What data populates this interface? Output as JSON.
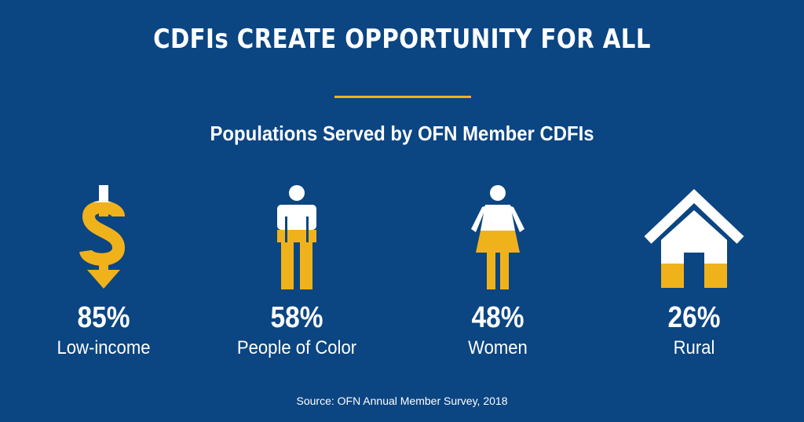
{
  "title": "CDFIs CREATE OPPORTUNITY FOR ALL",
  "subtitle": "Populations Served by OFN Member CDFIs",
  "colors": {
    "background": "#0b4582",
    "accent": "#f0b21b",
    "text": "#ffffff"
  },
  "stats": [
    {
      "percent": "85%",
      "label": "Low-income",
      "icon": "dollar-arrow-icon",
      "fill_fraction": 0.85
    },
    {
      "percent": "58%",
      "label": "People of Color",
      "icon": "person-icon",
      "fill_fraction": 0.58
    },
    {
      "percent": "48%",
      "label": "Women",
      "icon": "woman-icon",
      "fill_fraction": 0.48
    },
    {
      "percent": "26%",
      "label": "Rural",
      "icon": "house-icon",
      "fill_fraction": 0.26
    }
  ],
  "source": "Source: OFN Annual Member Survey, 2018"
}
